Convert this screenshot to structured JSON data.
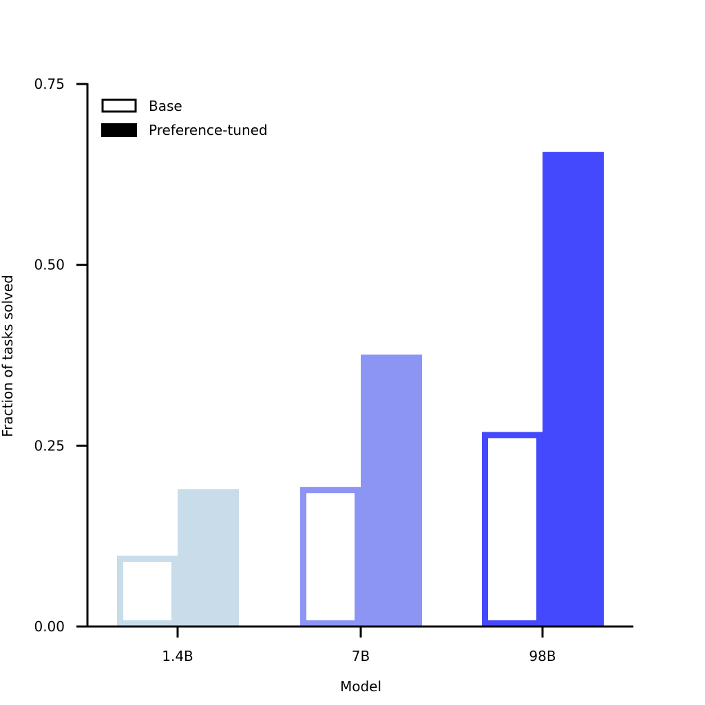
{
  "chart_data": {
    "type": "bar",
    "title": "",
    "xlabel": "Model",
    "ylabel": "Fraction of tasks solved",
    "categories": [
      "1.4B",
      "7B",
      "98B"
    ],
    "ylim": [
      0,
      0.75
    ],
    "yticks": [
      "0.00",
      "0.25",
      "0.50",
      "0.75"
    ],
    "ytick_values": [
      0,
      0.25,
      0.5,
      0.75
    ],
    "grid": false,
    "legend_position": "top-left",
    "category_colors": [
      "#c8dcea",
      "#8c94f4",
      "#4549fe"
    ],
    "series": [
      {
        "name": "Base",
        "style": "outline",
        "values": [
          0.098,
          0.193,
          0.269
        ]
      },
      {
        "name": "Preference-tuned",
        "style": "filled",
        "values": [
          0.19,
          0.376,
          0.656
        ]
      }
    ]
  }
}
